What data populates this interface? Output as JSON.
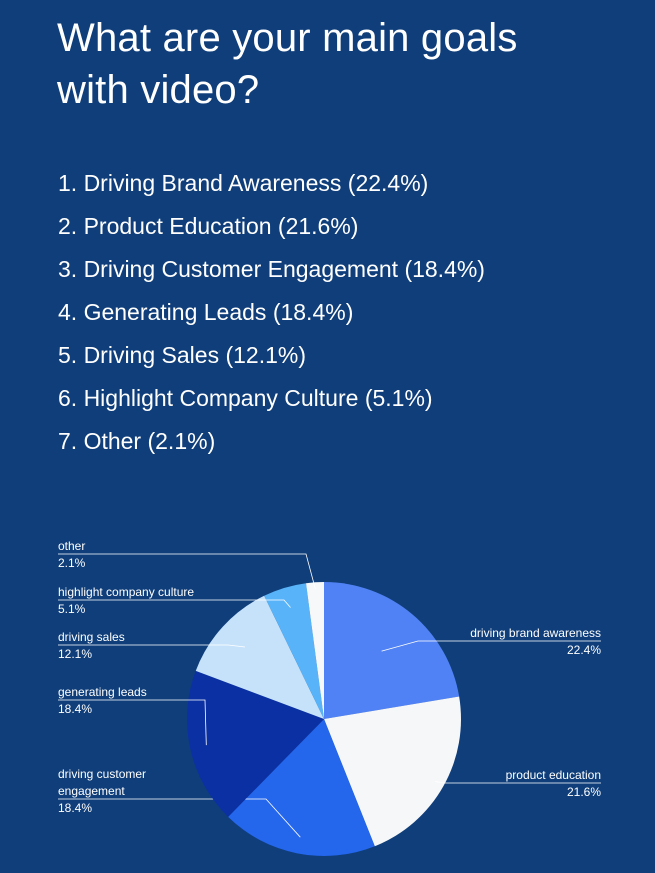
{
  "heading": {
    "line1": "What are your main goals",
    "line2": "with video?"
  },
  "goals": [
    "1. Driving Brand Awareness (22.4%)",
    "2. Product Education (21.6%)",
    "3. Driving Customer Engagement (18.4%)",
    "4. Generating Leads (18.4%)",
    "5. Driving Sales (12.1%)",
    "6. Highlight Company Culture (5.1%)",
    "7. Other (2.1%)"
  ],
  "colors": {
    "background": "#0f3e7a",
    "text": "#ffffff"
  },
  "chart_data": {
    "type": "pie",
    "start_angle_deg": 0,
    "direction": "clockwise",
    "slices": [
      {
        "label": "driving brand awareness",
        "value": 22.4,
        "value_label": "22.4%",
        "color": "#5082f5"
      },
      {
        "label": "product education",
        "value": 21.6,
        "value_label": "21.6%",
        "color": "#f6f7f9"
      },
      {
        "label": [
          "driving customer",
          "engagement"
        ],
        "value": 18.4,
        "value_label": "18.4%",
        "color": "#2466ec"
      },
      {
        "label": "generating leads",
        "value": 18.4,
        "value_label": "18.4%",
        "color": "#0b30a3"
      },
      {
        "label": "driving sales",
        "value": 12.1,
        "value_label": "12.1%",
        "color": "#c6e2fb"
      },
      {
        "label": "highlight company culture",
        "value": 5.1,
        "value_label": "5.1%",
        "color": "#58b3f9"
      },
      {
        "label": "other",
        "value": 2.1,
        "value_label": "2.1%",
        "color": "#f7f8fa"
      }
    ]
  }
}
